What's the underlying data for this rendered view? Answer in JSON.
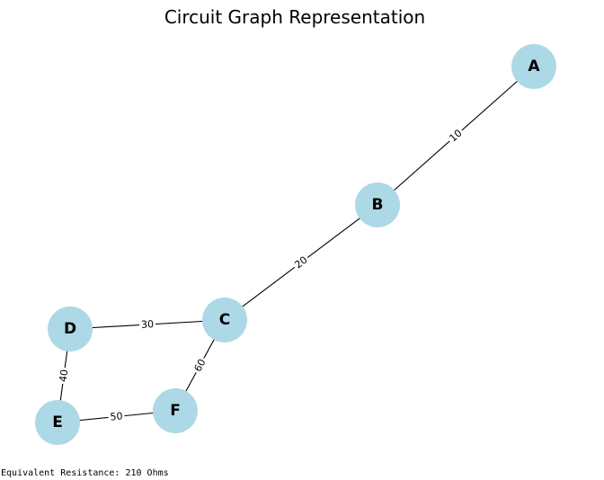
{
  "title": "Circuit Graph Representation",
  "node_color": "#add8e6",
  "edge_color": "#000000",
  "nodes": [
    {
      "id": "A",
      "label": "A"
    },
    {
      "id": "B",
      "label": "B"
    },
    {
      "id": "C",
      "label": "C"
    },
    {
      "id": "D",
      "label": "D"
    },
    {
      "id": "E",
      "label": "E"
    },
    {
      "id": "F",
      "label": "F"
    }
  ],
  "edges": [
    {
      "from": "A",
      "to": "B",
      "label": "10"
    },
    {
      "from": "B",
      "to": "C",
      "label": "20"
    },
    {
      "from": "C",
      "to": "D",
      "label": "30"
    },
    {
      "from": "D",
      "to": "E",
      "label": "40"
    },
    {
      "from": "E",
      "to": "F",
      "label": "50"
    },
    {
      "from": "F",
      "to": "C",
      "label": "60"
    }
  ],
  "footer": "Equivalent Resistance: 210 Ohms"
}
